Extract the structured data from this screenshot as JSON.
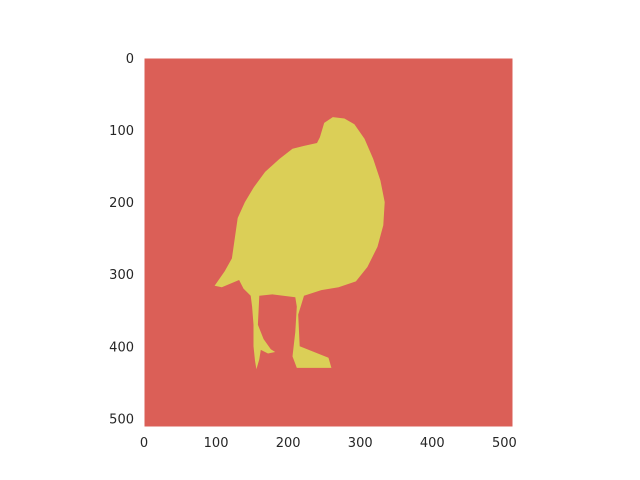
{
  "chart_data": {
    "type": "heatmap",
    "description_visible": "segmentation mask image: yellow foreground silhouette on red background",
    "title": "",
    "xlabel": "",
    "ylabel": "",
    "xlim": [
      0,
      512
    ],
    "ylim": [
      512,
      0
    ],
    "x_ticks": [
      0,
      100,
      200,
      300,
      400,
      500
    ],
    "y_ticks": [
      0,
      100,
      200,
      300,
      400,
      500
    ],
    "grid": false,
    "colors": {
      "background": "#db5f57",
      "foreground": "#dbcf57",
      "frame": "#ffffff"
    },
    "regions": [
      {
        "label": "background",
        "value": 0,
        "color": "#db5f57"
      },
      {
        "label": "foreground",
        "value": 1,
        "color": "#dbcf57"
      }
    ],
    "foreground_outline": [
      [
        262,
        82
      ],
      [
        278,
        84
      ],
      [
        292,
        92
      ],
      [
        306,
        112
      ],
      [
        318,
        140
      ],
      [
        328,
        170
      ],
      [
        334,
        200
      ],
      [
        332,
        232
      ],
      [
        324,
        262
      ],
      [
        310,
        290
      ],
      [
        294,
        310
      ],
      [
        270,
        318
      ],
      [
        246,
        322
      ],
      [
        222,
        330
      ],
      [
        214,
        356
      ],
      [
        216,
        400
      ],
      [
        256,
        416
      ],
      [
        260,
        430
      ],
      [
        212,
        430
      ],
      [
        206,
        414
      ],
      [
        210,
        380
      ],
      [
        212,
        345
      ],
      [
        210,
        332
      ],
      [
        178,
        328
      ],
      [
        160,
        330
      ],
      [
        158,
        370
      ],
      [
        166,
        390
      ],
      [
        176,
        404
      ],
      [
        182,
        408
      ],
      [
        172,
        410
      ],
      [
        162,
        405
      ],
      [
        160,
        418
      ],
      [
        156,
        432
      ],
      [
        154,
        420
      ],
      [
        152,
        400
      ],
      [
        152,
        370
      ],
      [
        150,
        345
      ],
      [
        148,
        330
      ],
      [
        138,
        320
      ],
      [
        132,
        308
      ],
      [
        108,
        318
      ],
      [
        98,
        316
      ],
      [
        112,
        296
      ],
      [
        122,
        278
      ],
      [
        126,
        250
      ],
      [
        130,
        222
      ],
      [
        140,
        200
      ],
      [
        152,
        180
      ],
      [
        168,
        158
      ],
      [
        188,
        140
      ],
      [
        206,
        126
      ],
      [
        222,
        122
      ],
      [
        240,
        118
      ],
      [
        244,
        110
      ],
      [
        250,
        90
      ]
    ]
  }
}
